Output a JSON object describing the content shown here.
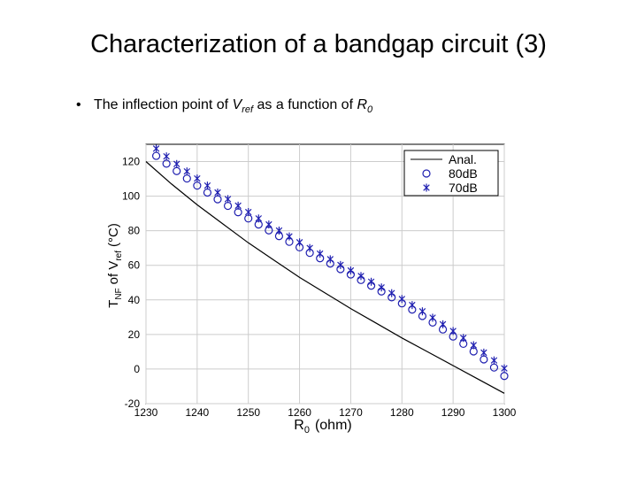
{
  "slide": {
    "title": "Characterization of a bandgap circuit (3)",
    "bullet_bullet": "•",
    "bullet_prefix": "The inflection point of ",
    "bullet_v": "V",
    "bullet_v_sub": "ref",
    "bullet_middle": " as a function of ",
    "bullet_r": "R",
    "bullet_r_sub": "0"
  },
  "chart_data": {
    "type": "scatter",
    "title": "",
    "xlabel_main": "R",
    "xlabel_sub": "0",
    "xlabel_unit": "(ohm)",
    "ylabel_main": "T",
    "ylabel_sub1": "NF",
    "ylabel_mid": "of V",
    "ylabel_sub2": "ref",
    "ylabel_unit": "(°C)",
    "xlim": [
      1230,
      1300
    ],
    "ylim": [
      -20,
      130
    ],
    "xticks": [
      1230,
      1240,
      1250,
      1260,
      1270,
      1280,
      1290,
      1300
    ],
    "yticks": [
      -20,
      0,
      20,
      40,
      60,
      80,
      100,
      120
    ],
    "grid": true,
    "legend_position": "top-right",
    "colors": {
      "anal": "#000000",
      "markers": "#1f1fb0",
      "grid": "#cccccc"
    },
    "series": [
      {
        "name": "Anal.",
        "style": "line",
        "x": [
          1230,
          1235,
          1240,
          1245,
          1250,
          1255,
          1260,
          1265,
          1270,
          1275,
          1280,
          1285,
          1290,
          1295,
          1300
        ],
        "values": [
          120,
          107,
          95,
          84,
          73,
          63,
          53,
          44,
          35,
          26.5,
          18,
          10,
          2,
          -6,
          -14
        ]
      },
      {
        "name": "80dB",
        "style": "circle",
        "x": [
          1232,
          1234,
          1236,
          1238,
          1240,
          1242,
          1244,
          1246,
          1248,
          1250,
          1252,
          1254,
          1256,
          1258,
          1260,
          1262,
          1264,
          1266,
          1268,
          1270,
          1272,
          1274,
          1276,
          1278,
          1280,
          1282,
          1284,
          1286,
          1288,
          1290,
          1292,
          1294,
          1296,
          1298,
          1300
        ],
        "values": [
          123.3,
          118.8,
          114.5,
          110.2,
          106.1,
          102.1,
          98.2,
          94.4,
          90.7,
          87.1,
          83.6,
          80.2,
          76.9,
          73.6,
          70.4,
          67.2,
          64.1,
          61.0,
          57.8,
          54.7,
          51.5,
          48.2,
          44.9,
          41.5,
          38.0,
          34.4,
          30.7,
          26.9,
          22.9,
          18.8,
          14.6,
          10.2,
          5.6,
          0.9,
          -4.0
        ]
      },
      {
        "name": "70dB",
        "style": "star",
        "x": [
          1232,
          1234,
          1236,
          1238,
          1240,
          1242,
          1244,
          1246,
          1248,
          1250,
          1252,
          1254,
          1256,
          1258,
          1260,
          1262,
          1264,
          1266,
          1268,
          1270,
          1272,
          1274,
          1276,
          1278,
          1280,
          1282,
          1284,
          1286,
          1288,
          1290,
          1292,
          1294,
          1296,
          1298,
          1300
        ],
        "values": [
          127.5,
          123.0,
          118.6,
          114.3,
          110.2,
          106.1,
          102.1,
          98.3,
          94.5,
          90.8,
          87.1,
          83.6,
          80.1,
          76.7,
          73.3,
          70.0,
          66.7,
          63.5,
          60.2,
          57.0,
          53.8,
          50.5,
          47.2,
          43.9,
          40.5,
          37.0,
          33.4,
          29.7,
          25.9,
          22.0,
          18.0,
          13.8,
          9.5,
          5.0,
          0.4
        ]
      }
    ]
  }
}
